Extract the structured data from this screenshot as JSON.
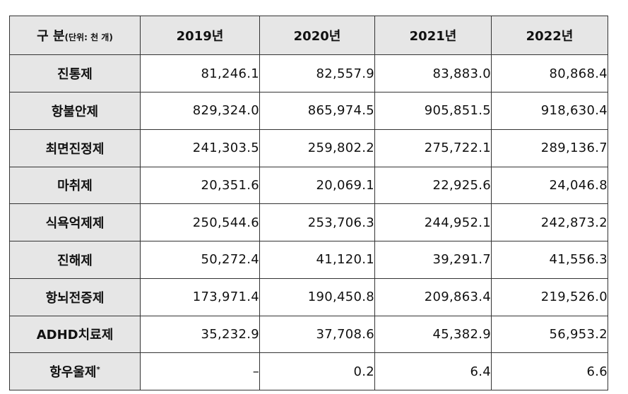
{
  "table": {
    "corner_label": "구 분",
    "unit_label": "(단위: 천 개)",
    "columns": [
      "2019년",
      "2020년",
      "2021년",
      "2022년"
    ],
    "rows": [
      {
        "label": "진통제",
        "values": [
          "81,246.1",
          "82,557.9",
          "83,883.0",
          "80,868.4"
        ]
      },
      {
        "label": "항불안제",
        "values": [
          "829,324.0",
          "865,974.5",
          "905,851.5",
          "918,630.4"
        ]
      },
      {
        "label": "최면진정제",
        "values": [
          "241,303.5",
          "259,802.2",
          "275,722.1",
          "289,136.7"
        ]
      },
      {
        "label": "마취제",
        "values": [
          "20,351.6",
          "20,069.1",
          "22,925.6",
          "24,046.8"
        ]
      },
      {
        "label": "식욕억제제",
        "values": [
          "250,544.6",
          "253,706.3",
          "244,952.1",
          "242,873.2"
        ]
      },
      {
        "label": "진해제",
        "values": [
          "50,272.4",
          "41,120.1",
          "39,291.7",
          "41,556.3"
        ]
      },
      {
        "label": "항뇌전증제",
        "values": [
          "173,971.4",
          "190,450.8",
          "209,863.4",
          "219,526.0"
        ]
      },
      {
        "label": "ADHD치료제",
        "values": [
          "35,232.9",
          "37,708.6",
          "45,382.9",
          "56,953.2"
        ]
      },
      {
        "label": "항우울제",
        "label_mark": "*",
        "values": [
          "–",
          "0.2",
          "6.4",
          "6.6"
        ]
      }
    ]
  }
}
